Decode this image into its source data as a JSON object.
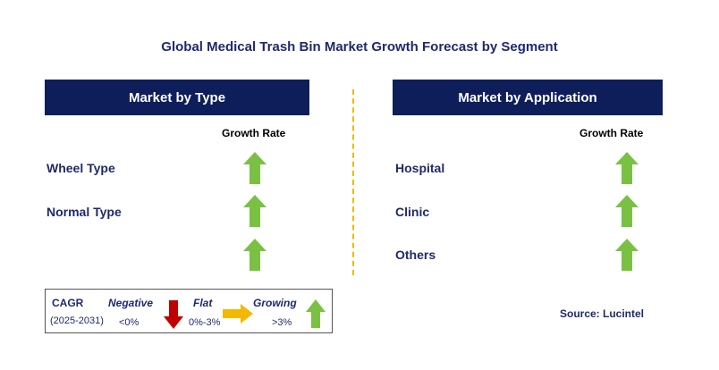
{
  "chart_data": {
    "type": "table",
    "title": "Global Medical Trash Bin Market Growth Forecast by Segment",
    "panels": [
      {
        "header": "Market by Type",
        "column_header": "Growth Rate",
        "rows": [
          {
            "label": "Wheel Type",
            "growth": "Growing"
          },
          {
            "label": "Normal Type",
            "growth": "Growing"
          },
          {
            "label": "",
            "growth": "Growing"
          }
        ]
      },
      {
        "header": "Market by Application",
        "column_header": "Growth Rate",
        "rows": [
          {
            "label": "Hospital",
            "growth": "Growing"
          },
          {
            "label": "Clinic",
            "growth": "Growing"
          },
          {
            "label": "Others",
            "growth": "Growing"
          }
        ]
      }
    ],
    "legend": {
      "cagr_label": "CAGR",
      "period": "(2025-2031)",
      "items": [
        {
          "name": "Negative",
          "range": "<0%",
          "icon": "down-arrow-icon",
          "color": "#c00000"
        },
        {
          "name": "Flat",
          "range": "0%-3%",
          "icon": "right-arrow-icon",
          "color": "#f5b800"
        },
        {
          "name": "Growing",
          "range": ">3%",
          "icon": "up-arrow-icon",
          "color": "#7ac143"
        }
      ]
    },
    "source": "Source: Lucintel"
  },
  "colors": {
    "header_bg": "#0e1e5b",
    "text_navy": "#1f2a6b",
    "growing": "#7ac143",
    "flat": "#f5b800",
    "negative": "#c00000",
    "divider": "#f2b800"
  }
}
